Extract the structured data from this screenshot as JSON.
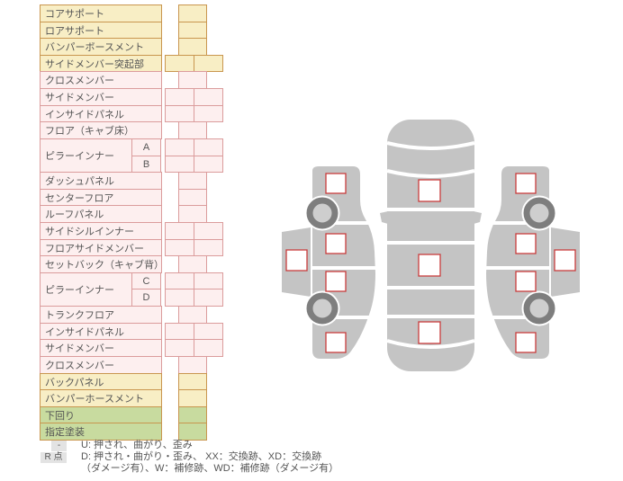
{
  "colors": {
    "row_yellow_fill": "#f8eec5",
    "row_yellow_border": "#c9964f",
    "row_pink_fill": "#fdefef",
    "row_pink_border": "#db9c9c",
    "row_green_fill": "#c8db9f",
    "marker_border_red": "#c83c3c",
    "car_body_gray": "#c4c4c4",
    "wheel_ring_gray": "#7e7e7e",
    "wheel_hub_gray": "#cecece",
    "legend_badge_bg": "#e3e3e3",
    "text_gray": "#555555"
  },
  "table": {
    "rows": [
      {
        "label": "コアサポート",
        "group": "yellow",
        "cells": 1
      },
      {
        "label": "ロアサポート",
        "group": "yellow",
        "cells": 1
      },
      {
        "label": "バンパーボースメント",
        "group": "yellow",
        "cells": 1
      },
      {
        "label": "サイドメンバー突起部",
        "group": "yellow",
        "cells": 2
      },
      {
        "label": "クロスメンバー",
        "group": "pink",
        "cells": 1
      },
      {
        "label": "サイドメンバー",
        "group": "pink",
        "cells": 2
      },
      {
        "label": "インサイドパネル",
        "group": "pink",
        "cells": 2
      },
      {
        "label": "フロア（キャブ床）",
        "group": "pink",
        "cells": 1
      },
      {
        "label": "ピラーインナー",
        "sub": "A",
        "group": "pink",
        "cells": 2,
        "span_start": true
      },
      {
        "label": "",
        "sub": "B",
        "group": "pink",
        "cells": 2,
        "span_cont": true
      },
      {
        "label": "ダッシュパネル",
        "group": "pink",
        "cells": 1
      },
      {
        "label": "センターフロア",
        "group": "pink",
        "cells": 1
      },
      {
        "label": "ルーフパネル",
        "group": "pink",
        "cells": 1
      },
      {
        "label": "サイドシルインナー",
        "group": "pink",
        "cells": 2
      },
      {
        "label": "フロアサイドメンバー",
        "group": "pink",
        "cells": 2
      },
      {
        "label": "セットバック（キャブ背）",
        "group": "pink",
        "cells": 1
      },
      {
        "label": "ピラーインナー",
        "sub": "C",
        "group": "pink",
        "cells": 2,
        "span_start": true
      },
      {
        "label": "",
        "sub": "D",
        "group": "pink",
        "cells": 2,
        "span_cont": true
      },
      {
        "label": "トランクフロア",
        "group": "pink",
        "cells": 1
      },
      {
        "label": "インサイドパネル",
        "group": "pink",
        "cells": 2
      },
      {
        "label": "サイドメンバー",
        "group": "pink",
        "cells": 2
      },
      {
        "label": "クロスメンバー",
        "group": "pink",
        "cells": 1
      },
      {
        "label": "バックパネル",
        "group": "yellow",
        "cells": 1
      },
      {
        "label": "バンパーホースメント",
        "group": "yellow",
        "cells": 1
      },
      {
        "label": "下回り",
        "group": "green",
        "cells": 1
      },
      {
        "label": "指定塗装",
        "group": "green",
        "cells": 1
      }
    ]
  },
  "legend": {
    "rows": [
      {
        "badge": "-",
        "text": "U: 押され、曲がり、歪み"
      },
      {
        "badge": "R 点",
        "text": "D: 押され・曲がり・歪み、 XX：交換跡、XD：交換跡"
      },
      {
        "badge": "",
        "text": "（ダメージ有）、W：補修跡、WD：補修跡（ダメージ有）"
      }
    ]
  },
  "diagram": {
    "views": [
      "left-side-view",
      "top-view",
      "right-side-view"
    ],
    "markers": {
      "top": [
        "hood",
        "roof",
        "trunk"
      ],
      "left": [
        "fender",
        "front-door",
        "rear-door",
        "quarter-panel",
        "roof-side"
      ],
      "right": [
        "fender",
        "front-door",
        "rear-door",
        "quarter-panel",
        "roof-side"
      ]
    }
  }
}
